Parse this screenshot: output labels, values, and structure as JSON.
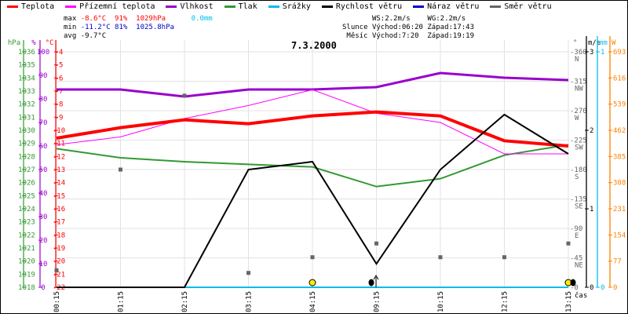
{
  "legend": [
    {
      "label": "Teplota",
      "color": "#ff0000"
    },
    {
      "label": "Přízemní teplota",
      "color": "#ff00ff"
    },
    {
      "label": "Vlhkost",
      "color": "#9900cc"
    },
    {
      "label": "Tlak",
      "color": "#339933"
    },
    {
      "label": "Srážky",
      "color": "#00bbee"
    },
    {
      "label": "Rychlost větru",
      "color": "#000000"
    },
    {
      "label": "Náraz větru",
      "color": "#0000cc"
    },
    {
      "label": "Směr větru",
      "color": "#666666"
    }
  ],
  "stats": {
    "max_label": "max",
    "max_temp": "-8.6°C",
    "max_hum": "91%",
    "max_press": "1029hPa",
    "max_rain": "0.0mm",
    "min_label": "min",
    "min_temp": "-11.2°C",
    "min_hum": "81%",
    "min_press": "1025.8hPa",
    "avg_label": "avg",
    "avg_temp": "-9.7°C"
  },
  "astro": {
    "ws": "WS:2.2m/s",
    "wg": "WG:2.2m/s",
    "sun_label": "Slunce",
    "sun_rise": "Východ:06:20",
    "sun_set": "Západ:17:43",
    "moon_label": "Měsíc",
    "moon_rise": "Východ:7:20",
    "moon_set": "Západ:19:19"
  },
  "chart_data": {
    "type": "line",
    "title": "7.3.2000",
    "xlabel": "čas",
    "x": [
      "00:15",
      "01:15",
      "02:15",
      "03:15",
      "04:15",
      "09:15",
      "10:15",
      "12:15",
      "13:15"
    ],
    "series": [
      {
        "name": "Teplota",
        "unit": "°C",
        "values": [
          -10.6,
          -9.8,
          -9.2,
          -9.5,
          -8.9,
          -8.6,
          -8.9,
          -10.8,
          -11.2
        ]
      },
      {
        "name": "Přízemní teplota",
        "unit": "°C",
        "values": [
          -11.1,
          -10.5,
          -9.1,
          -8.1,
          -6.9,
          -8.7,
          -9.4,
          -11.8,
          -11.8
        ]
      },
      {
        "name": "Vlhkost",
        "unit": "%",
        "values": [
          84,
          84,
          81,
          84,
          84,
          85,
          91,
          89,
          88
        ]
      },
      {
        "name": "Tlak",
        "unit": "hPa",
        "values": [
          1028.6,
          1027.9,
          1027.6,
          1027.4,
          1027.2,
          1025.7,
          1026.3,
          1028.1,
          1028.9
        ]
      },
      {
        "name": "Srážky",
        "unit": "mm",
        "values": [
          0,
          0,
          0,
          0,
          0,
          0,
          0,
          0,
          0
        ]
      },
      {
        "name": "Rychlost větru",
        "unit": "m/s",
        "values": [
          0,
          0,
          0,
          1.5,
          1.6,
          0.3,
          1.5,
          2.2,
          1.7
        ]
      },
      {
        "name": "Směr větru",
        "unit": "°",
        "values": [
          26,
          180,
          293,
          22,
          46,
          67,
          46,
          46,
          67
        ]
      }
    ],
    "axes": {
      "hpa": {
        "label": "hPa",
        "range": [
          1018,
          1036
        ],
        "ticks": [
          "1036",
          "1035",
          "1034",
          "1033",
          "1032",
          "1031",
          "1030",
          "1029",
          "1028",
          "1027",
          "1026",
          "1025",
          "1024",
          "1023",
          "1022",
          "1021",
          "1020",
          "1019",
          "1018"
        ]
      },
      "pct": {
        "label": "%",
        "range": [
          0,
          100
        ],
        "ticks": [
          "100",
          "90",
          "80",
          "70",
          "60",
          "50",
          "40",
          "30",
          "20",
          "10",
          "0"
        ]
      },
      "temp": {
        "label": "°C",
        "range": [
          -22,
          -4
        ],
        "ticks": [
          "-4",
          "-5",
          "-6",
          "-7",
          "-8",
          "-9",
          "-10",
          "-11",
          "-12",
          "-13",
          "-14",
          "-15",
          "-16",
          "-17",
          "-18",
          "-19",
          "-20",
          "-21",
          "-22"
        ]
      },
      "dir": {
        "label": "°",
        "range": [
          0,
          360
        ],
        "ticks": [
          {
            "v": "360",
            "d": "N"
          },
          {
            "v": "315",
            "d": "NW"
          },
          {
            "v": "270",
            "d": "W"
          },
          {
            "v": "225",
            "d": "SW"
          },
          {
            "v": "180",
            "d": "S"
          },
          {
            "v": "135",
            "d": "SE"
          },
          {
            "v": "90",
            "d": "E"
          },
          {
            "v": "45",
            "d": "NE"
          },
          {
            "v": "0",
            "d": ""
          }
        ]
      },
      "ms": {
        "label": "m/s",
        "range": [
          0,
          3
        ],
        "ticks": [
          "3",
          "2",
          "1",
          "0"
        ]
      },
      "mm": {
        "label": "mm",
        "range": [
          0,
          1
        ],
        "ticks": [
          "1",
          "0"
        ]
      },
      "w": {
        "label": "W",
        "range": [
          0,
          693
        ],
        "ticks": [
          "693",
          "616",
          "539",
          "462",
          "385",
          "308",
          "231",
          "154",
          "77",
          "0"
        ]
      }
    },
    "grid": true
  }
}
